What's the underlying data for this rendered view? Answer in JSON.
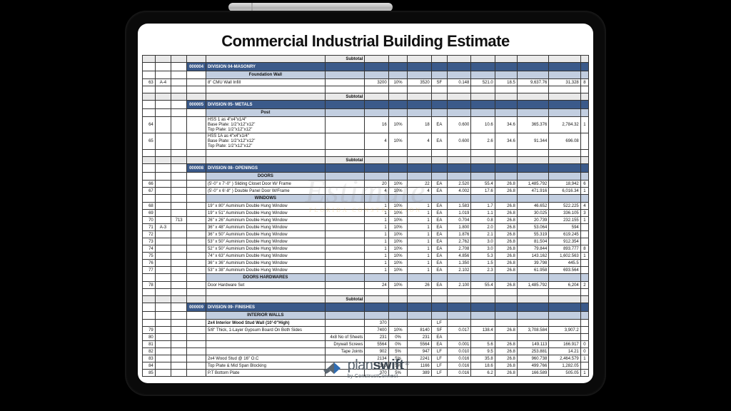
{
  "title": "Commercial Industrial Building Estimate",
  "watermark_main": "Estimate",
  "watermark_sub": "FLORIDA  CONSTRUCTION",
  "logo": {
    "plan": "plan",
    "swift": "swift",
    "reg": "®",
    "by": "by ConstructConnect"
  },
  "colors": {
    "division_bg": "#3b5a8a",
    "subheader_bg": "#c2cee0",
    "subtotal_bg": "#e9e9e9",
    "border": "#333333",
    "background": "#ffffff",
    "tablet_bg": "#000000"
  },
  "labels": {
    "subtotal": "Subtotal"
  },
  "columns": [
    "row",
    "ref",
    "aux",
    "code",
    "description",
    "sub",
    "qty",
    "pct",
    "qty2",
    "unit",
    "rate",
    "ext",
    "factor",
    "total",
    "total2",
    "tail"
  ],
  "sections": [
    {
      "type": "division",
      "code": "000004",
      "title": "DIVISION 04-MASONRY",
      "subheaders": [
        "Foundation Wall"
      ],
      "rows": [
        {
          "no": "63",
          "ref": "A-4",
          "desc": "8\" CMU Wall Infill",
          "qty": "3200",
          "pct": "10%",
          "qty2": "3520",
          "unit": "SF",
          "rate": "0.148",
          "ext": "521.0",
          "factor": "18.5",
          "t1": "9,637.76",
          "t2": "31,328",
          "tail": "8"
        }
      ]
    },
    {
      "type": "division",
      "code": "000005",
      "title": "DIVISION 05- METALS",
      "subheaders": [
        "Post"
      ],
      "rows": [
        {
          "no": "64",
          "desc": "HSS 1  as 4\"x4\"x1/4\"\nBase Plate: 1/2\"x12\"x12\"\nTop Plate: 1/2\"x12\"x12\"",
          "qty": "16",
          "pct": "10%",
          "qty2": "18",
          "unit": "EA",
          "rate": "0.600",
          "ext": "10.6",
          "factor": "34.6",
          "t1": "365.376",
          "t2": "2,784.32",
          "tail": "1"
        },
        {
          "no": "65",
          "desc": "HSS 1A  as 4\"x4\"x1/4\"\nBase Plate: 1/2\"x12\"x12\"\nTop Plate: 1/2\"x12\"x12\"",
          "qty": "4",
          "pct": "10%",
          "qty2": "4",
          "unit": "EA",
          "rate": "0.600",
          "ext": "2.6",
          "factor": "34.6",
          "t1": "91.344",
          "t2": "696.08",
          "tail": ""
        }
      ]
    },
    {
      "type": "division",
      "code": "000008",
      "title": "DIVISION 08- OPENINGS",
      "groups": [
        {
          "subheader": "DOORS",
          "rows": [
            {
              "no": "66",
              "desc": "(5'-0\" x 7'-0\" ) Sliding Closet Door W/ Frame",
              "qty": "20",
              "pct": "10%",
              "qty2": "22",
              "unit": "EA",
              "rate": "2.520",
              "ext": "55.4",
              "factor": "26.8",
              "t1": "1,485.792",
              "t2": "18,942",
              "tail": "6"
            },
            {
              "no": "67",
              "desc": "(5'-0\" x 6'-8\" ) Double Panel Door W/Frame",
              "qty": "4",
              "pct": "10%",
              "qty2": "4",
              "unit": "EA",
              "rate": "4.002",
              "ext": "17.6",
              "factor": "26.8",
              "t1": "471.916",
              "t2": "6,016.34",
              "tail": "1"
            }
          ]
        },
        {
          "subheader": "WINDOWS",
          "rows": [
            {
              "no": "68",
              "desc": "19\" x 80\" Auminium Double Hung Window",
              "qty": "1",
              "pct": "10%",
              "qty2": "1",
              "unit": "EA",
              "rate": "1.583",
              "ext": "1.7",
              "factor": "26.8",
              "t1": "46.652",
              "t2": "522.225",
              "tail": "4"
            },
            {
              "no": "69",
              "desc": "19\" x 51\" Auminium Double Hung Window",
              "qty": "1",
              "pct": "10%",
              "qty2": "1",
              "unit": "EA",
              "rate": "1.019",
              "ext": "1.1",
              "factor": "26.8",
              "t1": "30.025",
              "t2": "336.105",
              "tail": "3"
            },
            {
              "no": "70",
              "aux": "713",
              "desc": "26\" x 26\" Auminium Double Hung Window",
              "qty": "1",
              "pct": "10%",
              "qty2": "1",
              "unit": "EA",
              "rate": "0.704",
              "ext": "0.8",
              "factor": "26.8",
              "t1": "20.739",
              "t2": "232.155",
              "tail": "1"
            },
            {
              "no": "71",
              "ref": "A-3",
              "desc": "36\" x 48\" Auminium Double Hung Window",
              "qty": "1",
              "pct": "10%",
              "qty2": "1",
              "unit": "EA",
              "rate": "1.800",
              "ext": "2.0",
              "factor": "26.8",
              "t1": "53.064",
              "t2": "594",
              "tail": ""
            },
            {
              "no": "72",
              "desc": "36\" x 50\" Auminium Double Hung Window",
              "qty": "1",
              "pct": "10%",
              "qty2": "1",
              "unit": "EA",
              "rate": "1.876",
              "ext": "2.1",
              "factor": "26.8",
              "t1": "55.319",
              "t2": "619.245",
              "tail": ""
            },
            {
              "no": "73",
              "desc": "53\" x 50\" Auminium Double Hung Window",
              "qty": "1",
              "pct": "10%",
              "qty2": "1",
              "unit": "EA",
              "rate": "2.762",
              "ext": "3.0",
              "factor": "26.8",
              "t1": "81.504",
              "t2": "912.354",
              "tail": ""
            },
            {
              "no": "74",
              "desc": "52\" x 50\" Auminium Double Hung Window",
              "qty": "1",
              "pct": "10%",
              "qty2": "1",
              "unit": "EA",
              "rate": "2.708",
              "ext": "3.0",
              "factor": "26.8",
              "t1": "79.844",
              "t2": "893.777",
              "tail": "8"
            },
            {
              "no": "75",
              "desc": "74\" x 63\" Auminium Double Hung Window",
              "qty": "1",
              "pct": "10%",
              "qty2": "1",
              "unit": "EA",
              "rate": "4.856",
              "ext": "5.3",
              "factor": "26.8",
              "t1": "143.162",
              "t2": "1,602.563",
              "tail": "1"
            },
            {
              "no": "76",
              "desc": "36\" x 36\" Auminium Double Hung Window",
              "qty": "1",
              "pct": "10%",
              "qty2": "1",
              "unit": "EA",
              "rate": "1.350",
              "ext": "1.5",
              "factor": "26.8",
              "t1": "39.798",
              "t2": "445.5",
              "tail": ""
            },
            {
              "no": "77",
              "desc": "53\" x 38\" Auminium Double Hung Window",
              "qty": "1",
              "pct": "10%",
              "qty2": "1",
              "unit": "EA",
              "rate": "2.102",
              "ext": "2.3",
              "factor": "26.8",
              "t1": "61.958",
              "t2": "693.564",
              "tail": ""
            }
          ]
        },
        {
          "subheader": "DOORS HARDWARES",
          "rows": [
            {
              "no": "78",
              "desc": "Door Hardware Set",
              "qty": "24",
              "pct": "10%",
              "qty2": "26",
              "unit": "EA",
              "rate": "2.100",
              "ext": "55.4",
              "factor": "26.8",
              "t1": "1,485.792",
              "t2": "6,204",
              "tail": "2"
            }
          ]
        }
      ]
    },
    {
      "type": "division",
      "code": "000009",
      "title": "DIVISION 09- FINISHES",
      "groups": [
        {
          "subheader": "INTERIOR WALLS",
          "rows": [
            {
              "desc": "2x4 Interior Wood Stud Wall (10'-0\"High)",
              "bold": true,
              "qty": "370",
              "unit": "LF"
            },
            {
              "no": "79",
              "desc": "5/8\" Thick, 1-Layer Gypsum Board On Both Sides",
              "qty": "7400",
              "pct": "10%",
              "qty2": "8140",
              "unit": "SF",
              "rate": "0.017",
              "ext": "138.4",
              "factor": "26.8",
              "t1": "3,708.584",
              "t2": "3,907.2",
              "tail": ""
            },
            {
              "no": "80",
              "desc": "",
              "sub": "4x8 No of  Sheets",
              "qty": "231",
              "pct": "0%",
              "qty2": "231",
              "unit": "EA"
            },
            {
              "no": "81",
              "desc": "",
              "sub": "Drywall Screws",
              "qty": "5564",
              "pct": "0%",
              "qty2": "5564",
              "unit": "EA",
              "rate": "0.001",
              "ext": "5.6",
              "factor": "26.8",
              "t1": "149.113",
              "t2": "166.917",
              "tail": "0"
            },
            {
              "no": "82",
              "desc": "",
              "sub": "Tape Joints",
              "qty": "902",
              "pct": "5%",
              "qty2": "947",
              "unit": "LF",
              "rate": "0.010",
              "ext": "9.5",
              "factor": "26.8",
              "t1": "253.881",
              "t2": "14.21",
              "tail": "0"
            },
            {
              "no": "83",
              "desc": "2x4 Wood Stud @ 16\" O.C",
              "qty": "2134",
              "pct": "5%",
              "qty2": "2241",
              "unit": "LF",
              "rate": "0.016",
              "ext": "35.8",
              "factor": "26.8",
              "t1": "960.738",
              "t2": "2,464.579",
              "tail": "1"
            },
            {
              "no": "84",
              "desc": "Top Plate & Mid Span Blocking",
              "qty": "1110",
              "pct": "5%",
              "qty2": "1166",
              "unit": "LF",
              "rate": "0.016",
              "ext": "18.6",
              "factor": "26.8",
              "t1": "499.766",
              "t2": "1,282.05",
              "tail": ""
            },
            {
              "no": "85",
              "desc": "P.T Bottom Plate",
              "qty": "370",
              "pct": "5%",
              "qty2": "389",
              "unit": "LF",
              "rate": "0.016",
              "ext": "6.2",
              "factor": "26.8",
              "t1": "166.589",
              "t2": "505.05",
              "tail": "1"
            }
          ]
        }
      ]
    }
  ]
}
